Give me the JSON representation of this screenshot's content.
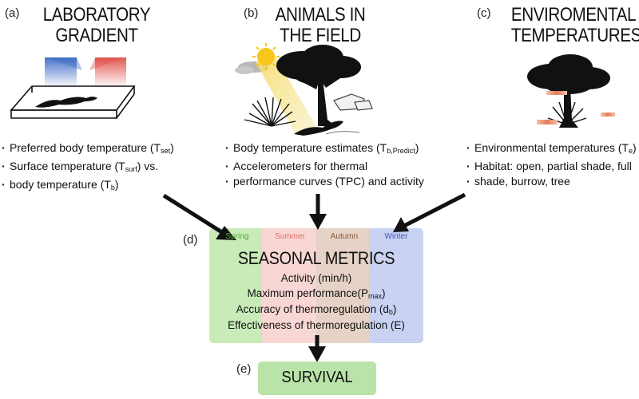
{
  "panels": {
    "a": {
      "letter": "(a)",
      "title_line1": "LABORATORY",
      "title_line2": "GRADIENT",
      "bullets": [
        {
          "pre": "Preferred body temperature (T",
          "sub": "set",
          "post": ")"
        },
        {
          "pre": "Surface temperature (T",
          "sub": "surf",
          "post": ") vs."
        },
        {
          "pre": "body temperature (T",
          "sub": "b",
          "post": ")"
        }
      ]
    },
    "b": {
      "letter": "(b)",
      "title_line1": "ANIMALS IN",
      "title_line2": "THE FIELD",
      "bullets": [
        {
          "pre": "Body temperature estimates (T",
          "sub": "b,Predict",
          "post": ")"
        },
        {
          "pre": "Accelerometers for thermal",
          "sub": "",
          "post": ""
        },
        {
          "pre": "performance curves (TPC) and activity",
          "sub": "",
          "post": ""
        }
      ]
    },
    "c": {
      "letter": "(c)",
      "title_line1": "ENVIROMENTAL",
      "title_line2": "TEMPERATURES",
      "bullets": [
        {
          "pre": "Environmental temperatures (T",
          "sub": "e",
          "post": ")"
        },
        {
          "pre": "Habitat: open, partial shade, full",
          "sub": "",
          "post": ""
        },
        {
          "pre": "shade, burrow, tree",
          "sub": "",
          "post": ""
        }
      ]
    }
  },
  "seasonal": {
    "letter": "(d)",
    "title": "SEASONAL METRICS",
    "seasons": [
      {
        "label": "Spring",
        "fill": "#c8ebb8",
        "text_color": "#5fae3c"
      },
      {
        "label": "Summer",
        "fill": "#f8d6d3",
        "text_color": "#e0706a"
      },
      {
        "label": "Autumn",
        "fill": "#e6d2c6",
        "text_color": "#8a5a3a"
      },
      {
        "label": "Winter",
        "fill": "#c9d2f3",
        "text_color": "#3a55b8"
      }
    ],
    "metrics": [
      {
        "pre": "Activity (min/h)",
        "sub": "",
        "post": ""
      },
      {
        "pre": "Maximum performance(P",
        "sub": "max",
        "post": ")"
      },
      {
        "pre": "Accuracy of thermoregulation (d",
        "sub": "b",
        "post": ")"
      },
      {
        "pre": "Effectiveness of thermoregulation (E)",
        "sub": "",
        "post": ""
      }
    ]
  },
  "survival": {
    "letter": "(e)",
    "title": "SURVIVAL",
    "fill": "#b9e3a8"
  },
  "colors": {
    "arrow": "#111111",
    "gradient_cold": "#4a78c8",
    "gradient_hot": "#e0504a",
    "sun": "#f7c61a",
    "silhouette": "#111111"
  }
}
